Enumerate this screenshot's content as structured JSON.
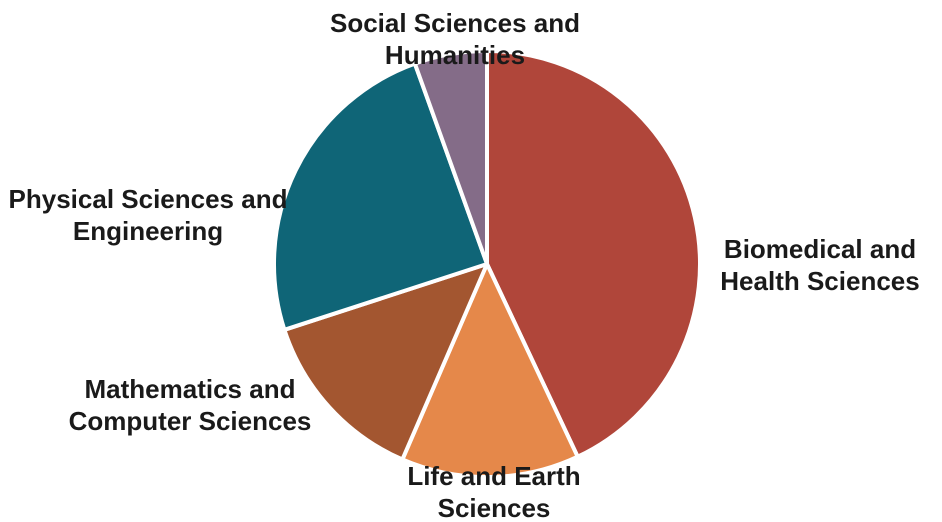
{
  "chart_data": {
    "type": "pie",
    "categories": [
      "Biomedical and Health Sciences",
      "Life and Earth Sciences",
      "Mathematics and Computer Sciences",
      "Physical Sciences and Engineering",
      "Social Sciences and Humanities"
    ],
    "values": [
      43,
      13.5,
      13.5,
      24.5,
      5.5
    ],
    "colors": [
      "#b0463a",
      "#e5884a",
      "#a35630",
      "#0f6577",
      "#846c88"
    ]
  }
}
